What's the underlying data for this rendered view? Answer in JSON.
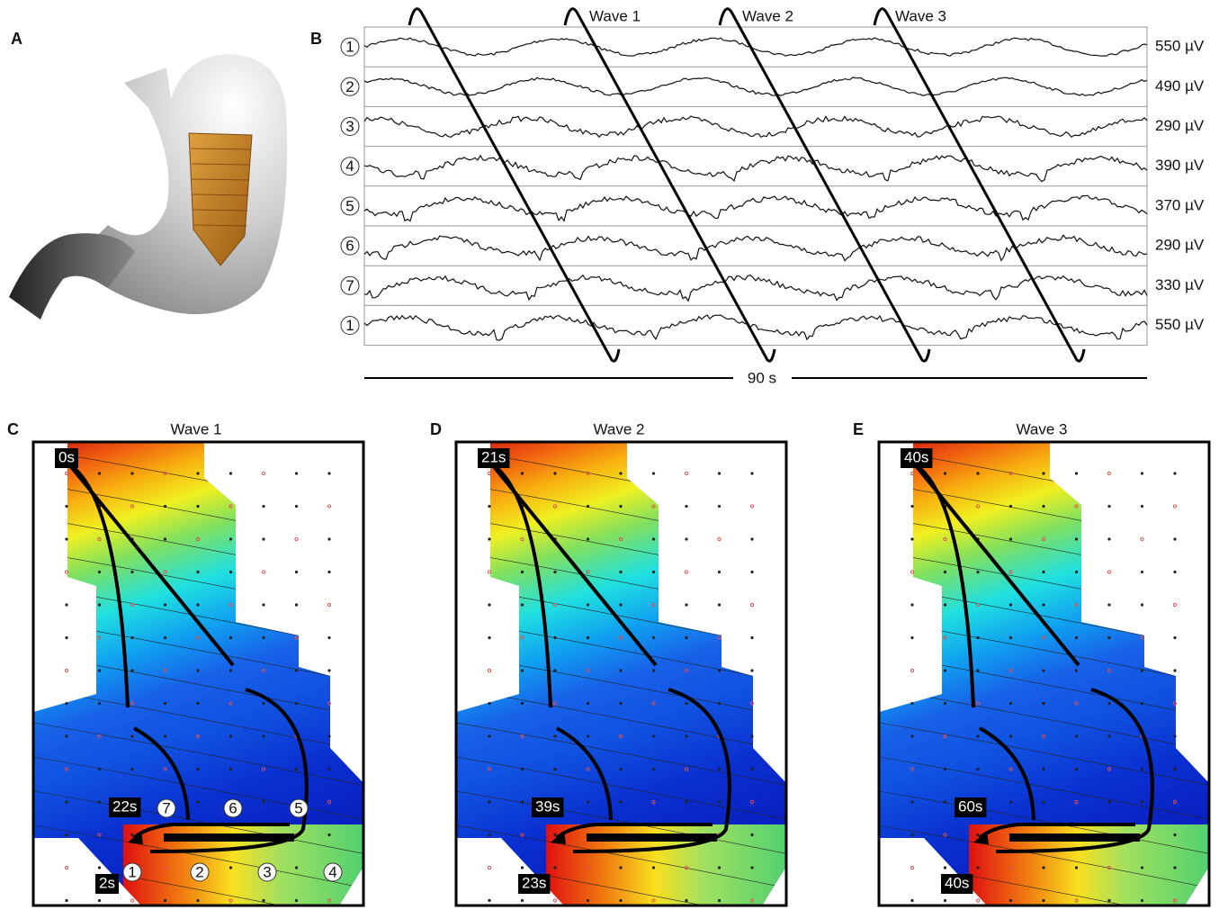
{
  "panels": {
    "a": "A",
    "b": "B",
    "c": "C",
    "d": "D",
    "e": "E"
  },
  "traces": {
    "waves": [
      "Wave 1",
      "Wave 2",
      "Wave 3"
    ],
    "channels": [
      {
        "label": "1",
        "amplitude": "550 µV"
      },
      {
        "label": "2",
        "amplitude": "490 µV"
      },
      {
        "label": "3",
        "amplitude": "290 µV"
      },
      {
        "label": "4",
        "amplitude": "390 µV"
      },
      {
        "label": "5",
        "amplitude": "370 µV"
      },
      {
        "label": "6",
        "amplitude": "290 µV"
      },
      {
        "label": "7",
        "amplitude": "330 µV"
      },
      {
        "label": "1",
        "amplitude": "550 µV"
      }
    ],
    "duration": "90 s"
  },
  "maps": [
    {
      "title": "Wave 1",
      "start": "0s",
      "left": "22s",
      "bottom": "2s"
    },
    {
      "title": "Wave 2",
      "start": "21s",
      "left": "39s",
      "bottom": "23s"
    },
    {
      "title": "Wave 3",
      "start": "40s",
      "left": "60s",
      "bottom": "40s"
    }
  ],
  "electrodes": [
    "1",
    "2",
    "3",
    "4",
    "5",
    "6",
    "7"
  ]
}
